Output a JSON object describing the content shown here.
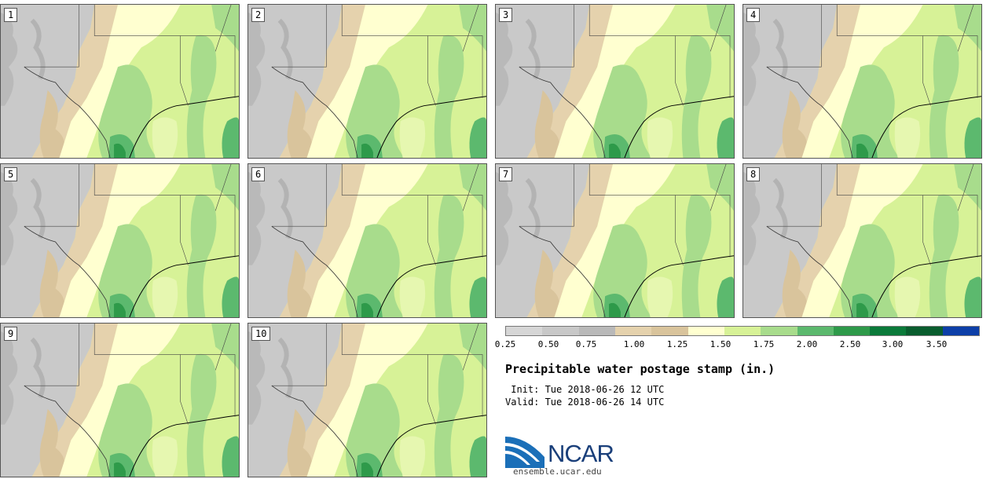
{
  "panels": [
    {
      "label": "1"
    },
    {
      "label": "2"
    },
    {
      "label": "3"
    },
    {
      "label": "4"
    },
    {
      "label": "5"
    },
    {
      "label": "6"
    },
    {
      "label": "7"
    },
    {
      "label": "8"
    },
    {
      "label": "9"
    },
    {
      "label": "10"
    }
  ],
  "legend": {
    "colors": [
      "#d6d6d6",
      "#c8c8c8",
      "#b9b9b9",
      "#e5d2ad",
      "#d9c49c",
      "#ffffd0",
      "#d7f297",
      "#a8dc8c",
      "#5cb96e",
      "#2e9a4a",
      "#0b7a3a",
      "#095d2e",
      "#0d3fa8"
    ],
    "ticks": [
      "0.25",
      "0.50",
      "0.75",
      "1.00",
      "1.25",
      "1.50",
      "1.75",
      "2.00",
      "2.50",
      "3.00",
      "3.50"
    ]
  },
  "title": "Precipitable water postage stamp (in.)",
  "init": " Init: Tue 2018-06-26 12 UTC",
  "valid": "Valid: Tue 2018-06-26 14 UTC",
  "logo": {
    "text": "NCAR",
    "url": "ensemble.ucar.edu"
  }
}
